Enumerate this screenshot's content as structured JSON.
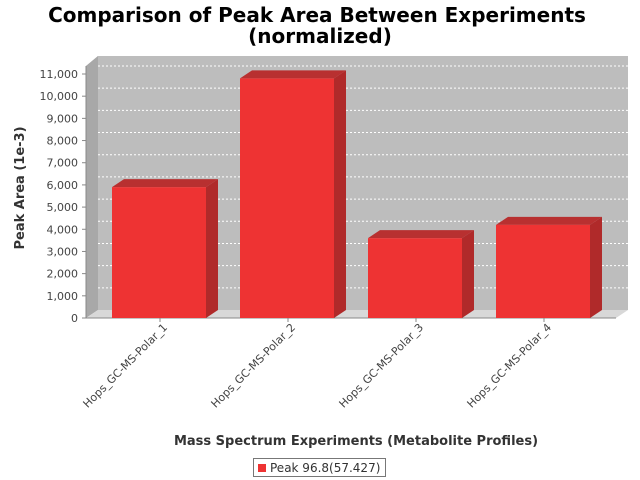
{
  "chart_data": {
    "type": "bar",
    "title": "Comparison of Peak Area Between Experiments",
    "subtitle": "(normalized)",
    "xlabel": "Mass Spectrum Experiments (Metabolite Profiles)",
    "ylabel": "Peak Area (1e-3)",
    "categories": [
      "Hops_GC-MS-Polar_1",
      "Hops_GC-MS-Polar_2",
      "Hops_GC-MS-Polar_3",
      "Hops_GC-MS-Polar_4"
    ],
    "series": [
      {
        "name": "Peak 96.8(57.427)",
        "values": [
          5900,
          10800,
          3600,
          4200
        ],
        "color": "#ee3333"
      }
    ],
    "ylim": [
      0,
      11000
    ],
    "yticks": [
      "0",
      "1,000",
      "2,000",
      "3,000",
      "4,000",
      "5,000",
      "6,000",
      "7,000",
      "8,000",
      "9,000",
      "10,000",
      "11,000"
    ],
    "grid": true,
    "legend_position": "bottom",
    "style": "3d"
  }
}
